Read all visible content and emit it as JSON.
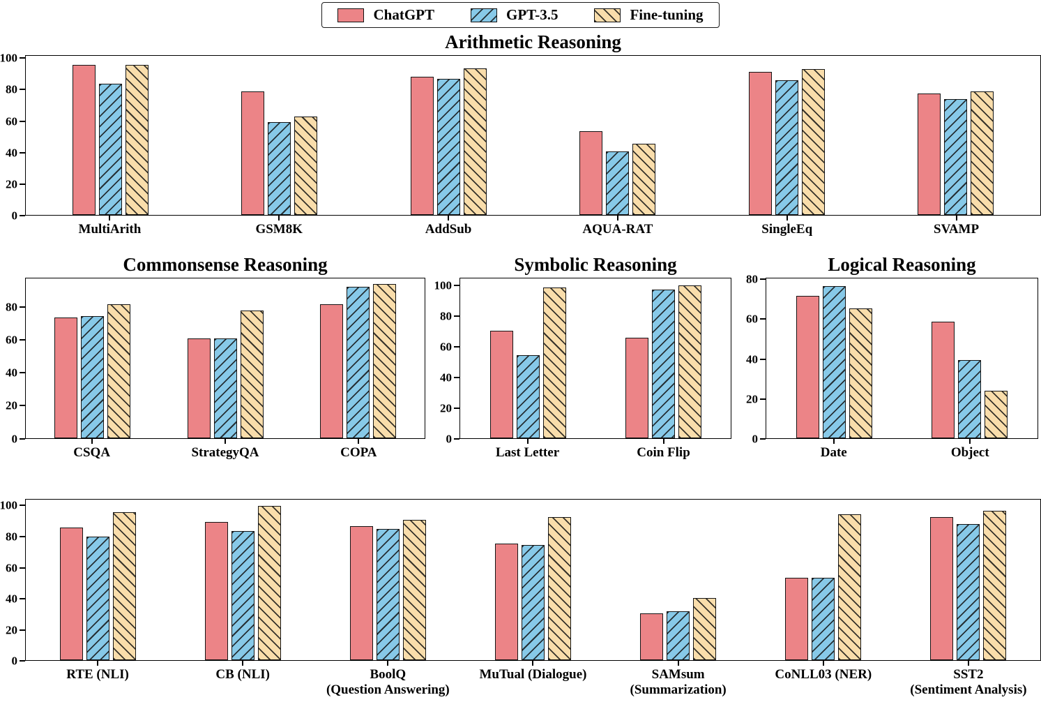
{
  "legend": {
    "position": "top-center",
    "items": [
      {
        "label": "ChatGPT",
        "color": "#ec8487",
        "hatch": "none"
      },
      {
        "label": "GPT-3.5",
        "color": "#87c9e8",
        "hatch": "fwd"
      },
      {
        "label": "Fine-tuning",
        "color": "#f9ddab",
        "hatch": "bwd"
      }
    ]
  },
  "chart_data": [
    {
      "type": "bar",
      "title": "Arithmetic Reasoning",
      "categories": [
        "MultiArith",
        "GSM8K",
        "AddSub",
        "AQUA-RAT",
        "SingleEq",
        "SVAMP"
      ],
      "series": [
        {
          "name": "ChatGPT",
          "values": [
            96,
            79,
            88.5,
            53.5,
            91.5,
            78
          ]
        },
        {
          "name": "GPT-3.5",
          "values": [
            84,
            59.5,
            87,
            40.5,
            86.5,
            74
          ]
        },
        {
          "name": "Fine-tuning",
          "values": [
            96,
            63,
            94,
            45.5,
            93.5,
            79
          ]
        }
      ],
      "ylim": [
        0,
        102
      ],
      "yticks": [
        0,
        20,
        40,
        60,
        80,
        100
      ],
      "grid": false
    },
    {
      "type": "bar",
      "title": "Commonsense Reasoning",
      "categories": [
        "CSQA",
        "StrategyQA",
        "COPA"
      ],
      "series": [
        {
          "name": "ChatGPT",
          "values": [
            74,
            61,
            82
          ]
        },
        {
          "name": "GPT-3.5",
          "values": [
            74.5,
            61,
            92.5
          ]
        },
        {
          "name": "Fine-tuning",
          "values": [
            82,
            78,
            94.5
          ]
        }
      ],
      "ylim": [
        0,
        98
      ],
      "yticks": [
        0,
        20,
        40,
        60,
        80
      ],
      "grid": false
    },
    {
      "type": "bar",
      "title": "Symbolic Reasoning",
      "categories": [
        "Last Letter",
        "Coin Flip"
      ],
      "series": [
        {
          "name": "ChatGPT",
          "values": [
            70.5,
            66
          ]
        },
        {
          "name": "GPT-3.5",
          "values": [
            54.5,
            97.5
          ]
        },
        {
          "name": "Fine-tuning",
          "values": [
            99,
            100
          ]
        }
      ],
      "ylim": [
        0,
        105
      ],
      "yticks": [
        0,
        20,
        40,
        60,
        80,
        100
      ],
      "grid": false
    },
    {
      "type": "bar",
      "title": "Logical Reasoning",
      "categories": [
        "Date",
        "Object"
      ],
      "series": [
        {
          "name": "ChatGPT",
          "values": [
            72,
            59
          ]
        },
        {
          "name": "GPT-3.5",
          "values": [
            77,
            39.5
          ]
        },
        {
          "name": "Fine-tuning",
          "values": [
            65.5,
            24
          ]
        }
      ],
      "ylim": [
        0,
        81
      ],
      "yticks": [
        0,
        20,
        40,
        60,
        80
      ],
      "grid": false
    },
    {
      "type": "bar",
      "title": "",
      "categories": [
        "RTE (NLI)",
        "CB (NLI)",
        "BoolQ\n(Question Answering)",
        "MuTual (Dialogue)",
        "SAMsum\n(Summarization)",
        "CoNLL03 (NER)",
        "SST2\n(Sentiment Analysis)"
      ],
      "series": [
        {
          "name": "ChatGPT",
          "values": [
            86,
            89.5,
            87,
            75.5,
            30.5,
            53.5,
            93
          ]
        },
        {
          "name": "GPT-3.5",
          "values": [
            80,
            84,
            85,
            75,
            32,
            53.5,
            88.5
          ]
        },
        {
          "name": "Fine-tuning",
          "values": [
            96,
            100,
            91,
            93,
            40.5,
            94.5,
            97
          ]
        }
      ],
      "ylim": [
        0,
        104
      ],
      "yticks": [
        0,
        20,
        40,
        60,
        80,
        100
      ],
      "grid": false
    }
  ]
}
